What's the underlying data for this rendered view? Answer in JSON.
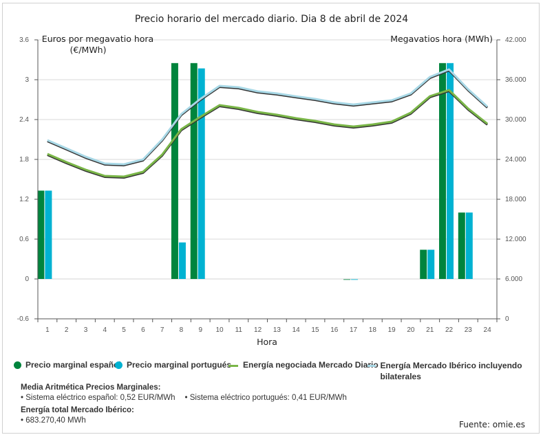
{
  "chart_data": {
    "type": "bar",
    "title": "Precio horario del mercado diario. Dia 8 de abril de 2024",
    "xlabel": "Hora",
    "ylabel_left": "Euros por megavatio hora",
    "ylabel_left_unit": "(€/MWh)",
    "ylabel_right": "Megavatios hora (MWh)",
    "ylim_left": [
      -0.6,
      3.6
    ],
    "ylim_right": [
      0,
      42000
    ],
    "yticks_left": [
      "-0.6",
      "0",
      "0.6",
      "1.2",
      "1.8",
      "2.4",
      "3",
      "3.6"
    ],
    "yticks_left_values": [
      -0.6,
      0,
      0.6,
      1.2,
      1.8,
      2.4,
      3.0,
      3.6
    ],
    "yticks_right": [
      "0",
      "6.000",
      "12.000",
      "18.000",
      "24.000",
      "30.000",
      "36.000",
      "42.000"
    ],
    "yticks_right_values": [
      0,
      6000,
      12000,
      18000,
      24000,
      30000,
      36000,
      42000
    ],
    "categories": [
      "1",
      "2",
      "3",
      "4",
      "5",
      "6",
      "7",
      "8",
      "9",
      "10",
      "11",
      "12",
      "13",
      "14",
      "15",
      "16",
      "17",
      "18",
      "19",
      "20",
      "21",
      "22",
      "23",
      "24"
    ],
    "grid": true,
    "legend_position": "bottom",
    "series": [
      {
        "name": "Precio marginal español",
        "type": "bar",
        "axis": "left",
        "color": "#00843d",
        "values": [
          1.33,
          0,
          0,
          0,
          0,
          0,
          0,
          3.25,
          3.25,
          0,
          0,
          0,
          0,
          0,
          0,
          0,
          -0.01,
          0,
          0,
          0,
          0.44,
          3.25,
          1.0,
          0
        ]
      },
      {
        "name": "Precio marginal portugués",
        "type": "bar",
        "axis": "left",
        "color": "#00b2d2",
        "values": [
          1.33,
          0,
          0,
          0,
          0,
          0,
          0,
          0.55,
          3.17,
          0,
          0,
          0,
          0,
          0,
          0,
          0,
          -0.01,
          0,
          0,
          0,
          0.44,
          3.25,
          1.0,
          0
        ]
      },
      {
        "name": "Energía negociada Mercado Diario",
        "type": "line",
        "axis": "right",
        "color": "#7ab648",
        "values": [
          24830,
          23590,
          22450,
          21520,
          21410,
          22140,
          24720,
          28550,
          30410,
          32170,
          31760,
          31140,
          30720,
          30210,
          29790,
          29270,
          28960,
          29270,
          29690,
          31030,
          33520,
          34450,
          31650,
          29380
        ]
      },
      {
        "name": "Energía Mercado Ibérico incluyendo bilaterales",
        "type": "line",
        "axis": "right",
        "color": "#a8d8e6",
        "values": [
          26900,
          25650,
          24400,
          23380,
          23270,
          24000,
          27000,
          30830,
          33100,
          35070,
          34860,
          34240,
          33930,
          33500,
          33100,
          32590,
          32270,
          32590,
          32900,
          33930,
          36410,
          37550,
          34550,
          31960
        ]
      }
    ]
  },
  "legend": {
    "items": [
      {
        "label": "Precio marginal español",
        "color": "#00843d"
      },
      {
        "label": "Precio marginal portugués",
        "color": "#00b2d2"
      },
      {
        "label": "Energía negociada Mercado Diario",
        "color": "#7ab648"
      },
      {
        "label": "Energía Mercado Ibérico incluyendo bilaterales",
        "color": "#a8d8e6"
      }
    ]
  },
  "info": {
    "avg_title": "Media Aritmética Precios Marginales:",
    "avg_es": "• Sistema eléctrico español: 0,52 EUR/MWh",
    "avg_pt": "• Sistema eléctrico portugués: 0,41 EUR/MWh",
    "energy_title": "Energía total Mercado Ibérico:",
    "energy_value": "• 683.270,40 MWh"
  },
  "source": "Fuente: omie.es"
}
